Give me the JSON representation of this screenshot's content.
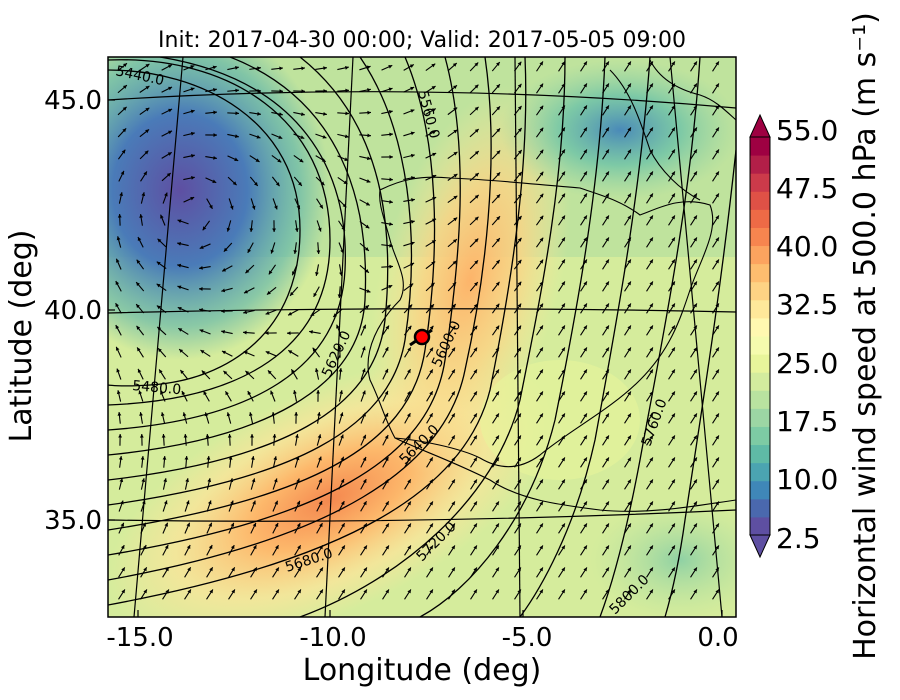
{
  "chart_data": {
    "type": "heatmap",
    "title": "Init: 2017-04-30 00:00; Valid: 2017-05-05 09:00",
    "xlabel": "Longitude (deg)",
    "ylabel": "Latitude (deg)",
    "x_ticks": [
      "-15.0",
      "-10.0",
      "-5.0",
      "0.0"
    ],
    "y_ticks": [
      "45.0",
      "40.0",
      "35.0"
    ],
    "xlim": [
      -16,
      0.3
    ],
    "ylim": [
      32.7,
      46.2
    ],
    "colorbar": {
      "label": "Horizontal wind speed at 500.0 hPa (m s⁻¹)",
      "range": [
        2.5,
        55.0
      ],
      "step": 2.5,
      "tick_labels": [
        "2.5",
        "10.0",
        "17.5",
        "25.0",
        "32.5",
        "40.0",
        "47.5",
        "55.0"
      ],
      "colors": [
        "#5e4fa2",
        "#4a68ae",
        "#3f87b8",
        "#4ba4b1",
        "#5fbaa6",
        "#7dcba4",
        "#9cd6a4",
        "#b9e3a0",
        "#d3ec9e",
        "#e8f59b",
        "#f5fbae",
        "#fff8b0",
        "#fee89a",
        "#fdd384",
        "#fdbd6f",
        "#fca35f",
        "#f7854f",
        "#ee6a46",
        "#df5146",
        "#cc3a4a",
        "#b21f48",
        "#9e0142"
      ]
    },
    "wind_speed_features": [
      {
        "lon": -14.5,
        "lat": 42.5,
        "speed": 5,
        "label": "slow vortex core off NW Iberia"
      },
      {
        "lon": -8.5,
        "lat": 36.0,
        "speed": 40,
        "label": "jet maximum west of Gibraltar"
      },
      {
        "lon": -6.8,
        "lat": 41.0,
        "speed": 36,
        "label": "jet core over central Iberia"
      },
      {
        "lon": -3.0,
        "lat": 44.5,
        "speed": 10,
        "label": "weak flow over Bay of Biscay / France"
      }
    ],
    "contours": {
      "variable": "geopotential height (m)",
      "labels": [
        "5440.0",
        "5480.0",
        "5560.0",
        "5600.0",
        "5620.0",
        "5640.0",
        "5680.0",
        "5720.0",
        "5760.0",
        "5800.0"
      ]
    },
    "marker": {
      "lon": -7.6,
      "lat": 39.3,
      "color": "#ff0000"
    }
  }
}
